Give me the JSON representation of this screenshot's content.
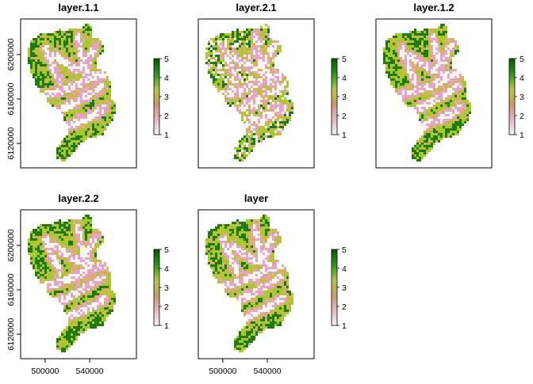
{
  "figure": {
    "rows": 2,
    "cols": 3
  },
  "chart_data": [
    {
      "type": "heatmap",
      "title": "layer.1.1",
      "xlabel": "",
      "ylabel": "",
      "y_ticks": [
        6120000,
        6160000,
        6200000
      ],
      "x_ticks": [],
      "legend": {
        "breaks": [
          1,
          2,
          3,
          4,
          5
        ],
        "position": "right"
      },
      "style": "mixed-green"
    },
    {
      "type": "heatmap",
      "title": "layer.2.1",
      "xlabel": "",
      "ylabel": "",
      "y_ticks": [],
      "x_ticks": [],
      "legend": {
        "breaks": [
          1,
          2,
          3,
          4,
          5
        ],
        "position": "right"
      },
      "style": "speckled"
    },
    {
      "type": "heatmap",
      "title": "layer.1.2",
      "xlabel": "",
      "ylabel": "",
      "y_ticks": [],
      "x_ticks": [],
      "legend": {
        "breaks": [
          1,
          2,
          3,
          4,
          5
        ],
        "position": "right"
      },
      "style": "mixed-green"
    },
    {
      "type": "heatmap",
      "title": "layer.2.2",
      "xlabel": "",
      "ylabel": "",
      "y_ticks": [
        6120000,
        6160000,
        6200000
      ],
      "x_ticks": [
        500000,
        540000
      ],
      "legend": {
        "breaks": [
          1,
          2,
          3,
          4,
          5
        ],
        "position": "right"
      },
      "style": "mixed-green"
    },
    {
      "type": "heatmap",
      "title": "layer",
      "xlabel": "",
      "ylabel": "",
      "y_ticks": [],
      "x_ticks": [
        500000,
        540000
      ],
      "legend": {
        "breaks": [
          1,
          2,
          3,
          4,
          5
        ],
        "position": "right"
      },
      "style": "mixed-green"
    }
  ],
  "value_colors": {
    "1": "#f7f7f7",
    "2": "#e9a3c9",
    "3": "#d6b35a",
    "4": "#a8c92a",
    "5": "#1f7a0f"
  },
  "legend_gradient": [
    "#f2f2f2",
    "#e7b5c8",
    "#c99a6a",
    "#b6c84a",
    "#2f9a1f",
    "#0a5a00"
  ],
  "colors": {
    "frame": "#000000",
    "background_mask": "#eeeeee"
  }
}
